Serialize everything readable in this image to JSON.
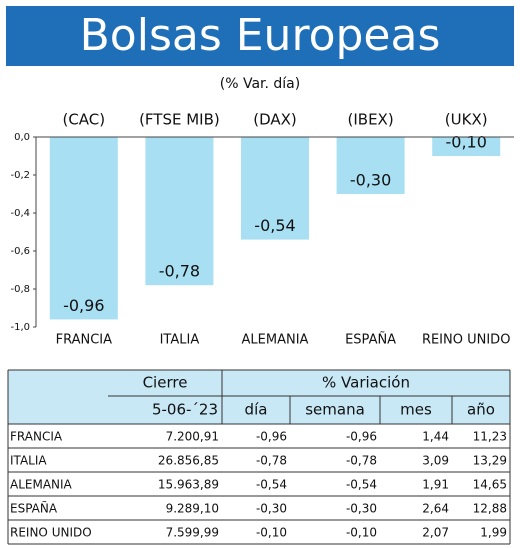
{
  "chart_data": {
    "type": "bar",
    "title": "Bolsas Europeas",
    "subtitle": "(% Var. día)",
    "index_names": [
      "(CAC)",
      "(FTSE MIB)",
      "(DAX)",
      "(IBEX)",
      "(UKX)"
    ],
    "categories": [
      "FRANCIA",
      "ITALIA",
      "ALEMANIA",
      "ESPAÑA",
      "REINO UNIDO"
    ],
    "values": [
      -0.96,
      -0.78,
      -0.54,
      -0.3,
      -0.1
    ],
    "value_labels": [
      "-0,96",
      "-0,78",
      "-0,54",
      "-0,30",
      "-0,10"
    ],
    "color": "#a9dff3",
    "ylim": [
      -1.0,
      0.0
    ],
    "yticks": [
      {
        "value": 0.0,
        "label": "0,0"
      },
      {
        "value": -0.2,
        "label": "-0,2"
      },
      {
        "value": -0.4,
        "label": "-0,4"
      },
      {
        "value": -0.6,
        "label": "-0,6"
      },
      {
        "value": -0.8,
        "label": "-0,8"
      },
      {
        "value": -1.0,
        "label": "-1,0"
      }
    ],
    "grid": false
  },
  "table": {
    "header": [
      "Cierre",
      "% Variación"
    ],
    "subheader": [
      "5-06-´23",
      "día",
      "semana",
      "mes",
      "año"
    ],
    "rows": [
      [
        "FRANCIA",
        "7.200,91",
        "-0,96",
        "-0,96",
        "1,44",
        "11,23"
      ],
      [
        "ITALIA",
        "26.856,85",
        "-0,78",
        "-0,78",
        "3,09",
        "13,29"
      ],
      [
        "ALEMANIA",
        "15.963,89",
        "-0,54",
        "-0,54",
        "1,91",
        "14,65"
      ],
      [
        "ESPAÑA",
        "9.289,10",
        "-0,30",
        "-0,30",
        "2,64",
        "12,88"
      ],
      [
        "REINO UNIDO",
        "7.599,99",
        "-0,10",
        "-0,10",
        "2,07",
        "1,99"
      ]
    ]
  }
}
